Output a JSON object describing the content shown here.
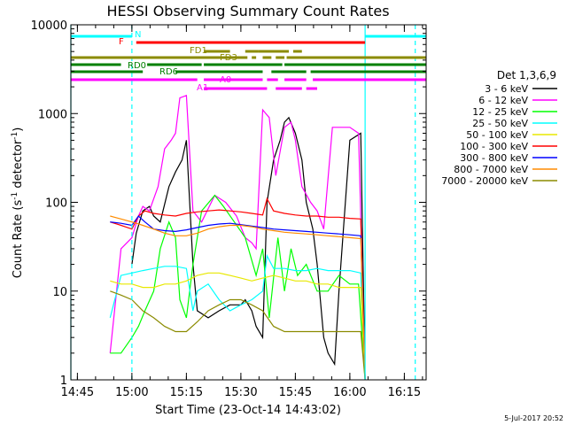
{
  "chart_data": {
    "type": "line",
    "title": "HESSI Observing Summary Count Rates",
    "xlabel": "Start Time (23-Oct-14 14:43:02)",
    "ylabel_main": "Count Rate (s",
    "ylabel_sup1": "-1",
    "ylabel_mid": " detector",
    "ylabel_sup2": "-1",
    "ylabel_end": ")",
    "yscale": "log",
    "ylim": [
      1,
      10000
    ],
    "xlim_minutes": [
      14.72,
      16.35
    ],
    "yticks": [
      "1",
      "10",
      "100",
      "1000",
      "10000"
    ],
    "xticks": [
      "14:45",
      "15:00",
      "15:15",
      "15:30",
      "15:45",
      "16:00",
      "16:15"
    ],
    "footer": "5-Jul-2017 20:52",
    "legend": {
      "title": "Det 1,3,6,9",
      "position": "right",
      "entries": [
        {
          "label": "3 - 6 keV",
          "color": "#000000"
        },
        {
          "label": "6 - 12 keV",
          "color": "#ff00ff"
        },
        {
          "label": "12 - 25 keV",
          "color": "#00ff00"
        },
        {
          "label": "25 - 50 keV",
          "color": "#00ffff"
        },
        {
          "label": "50 - 100 keV",
          "color": "#e8e800"
        },
        {
          "label": "100 - 300 keV",
          "color": "#ff0000"
        },
        {
          "label": "300 - 800 keV",
          "color": "#0000ff"
        },
        {
          "label": "800 - 7000 keV",
          "color": "#ff8c00"
        },
        {
          "label": "7000 - 20000 keV",
          "color": "#8b8b00"
        }
      ]
    },
    "flag_labels": [
      {
        "text": "N",
        "color": "#00ffff"
      },
      {
        "text": "F",
        "color": "#ff0000"
      },
      {
        "text": "FD1",
        "color": "#8b8b00"
      },
      {
        "text": "FD3",
        "color": "#8b8b00"
      },
      {
        "text": "RD0",
        "color": "#008000"
      },
      {
        "text": "RD6",
        "color": "#008000"
      },
      {
        "text": "A0",
        "color": "#ff00ff"
      },
      {
        "text": "A1",
        "color": "#ff00ff"
      }
    ],
    "flag_bars": [
      {
        "name": "N",
        "color": "#00ffff",
        "segments": [
          [
            14.72,
            15.0
          ],
          [
            16.07,
            16.35
          ]
        ]
      },
      {
        "name": "F",
        "color": "#ff0000",
        "segments": [
          [
            15.02,
            16.07
          ]
        ]
      },
      {
        "name": "FD1",
        "color": "#8b8b00",
        "segments": [
          [
            15.33,
            15.45
          ],
          [
            15.52,
            15.58
          ],
          [
            15.58,
            15.72
          ],
          [
            15.74,
            15.78
          ]
        ]
      },
      {
        "name": "FD3",
        "color": "#8b8b00",
        "segments": [
          [
            14.72,
            15.53
          ],
          [
            15.55,
            15.57
          ],
          [
            15.6,
            15.64
          ],
          [
            15.66,
            15.7
          ],
          [
            15.71,
            16.35
          ]
        ]
      },
      {
        "name": "RD0",
        "color": "#008000",
        "segments": [
          [
            14.72,
            14.95
          ],
          [
            15.07,
            15.32
          ],
          [
            15.33,
            15.69
          ],
          [
            15.7,
            16.35
          ]
        ]
      },
      {
        "name": "RD6",
        "color": "#008000",
        "segments": [
          [
            14.72,
            15.05
          ],
          [
            15.2,
            15.6
          ],
          [
            15.64,
            15.8
          ],
          [
            15.82,
            16.35
          ]
        ]
      },
      {
        "name": "A0",
        "color": "#ff00ff",
        "segments": [
          [
            14.72,
            15.3
          ],
          [
            15.33,
            15.6
          ],
          [
            15.62,
            15.67
          ],
          [
            15.7,
            15.8
          ],
          [
            15.83,
            16.35
          ]
        ]
      },
      {
        "name": "A1",
        "color": "#ff00ff",
        "segments": [
          [
            15.33,
            15.62
          ],
          [
            15.66,
            15.78
          ],
          [
            15.8,
            15.85
          ]
        ]
      }
    ],
    "vlines": [
      {
        "x": 14.72,
        "color": "#00ffff",
        "style": "solid"
      },
      {
        "x": 15.0,
        "color": "#00ffff",
        "style": "dashed"
      },
      {
        "x": 16.07,
        "color": "#00ffff",
        "style": "solid"
      },
      {
        "x": 16.3,
        "color": "#00ffff",
        "style": "dashed"
      }
    ],
    "series": [
      {
        "name": "3 - 6 keV",
        "color": "#000000",
        "x": [
          15.0,
          15.02,
          15.05,
          15.08,
          15.1,
          15.13,
          15.17,
          15.2,
          15.23,
          15.25,
          15.28,
          15.3,
          15.35,
          15.4,
          15.45,
          15.5,
          15.52,
          15.55,
          15.57,
          15.6,
          15.62,
          15.65,
          15.68,
          15.7,
          15.72,
          15.75,
          15.78,
          15.8,
          15.83,
          15.85,
          15.88,
          15.9,
          15.93,
          15.95,
          16.0,
          16.05,
          16.07
        ],
        "y": [
          20,
          45,
          80,
          90,
          70,
          60,
          150,
          220,
          300,
          500,
          20,
          6,
          5,
          6,
          7,
          7,
          8,
          6,
          4,
          3,
          100,
          300,
          500,
          800,
          900,
          600,
          300,
          100,
          50,
          20,
          3,
          2,
          1.5,
          10,
          500,
          600,
          1
        ]
      },
      {
        "name": "6 - 12 keV",
        "color": "#ff00ff",
        "x": [
          14.9,
          14.95,
          15.0,
          15.03,
          15.05,
          15.08,
          15.12,
          15.15,
          15.18,
          15.2,
          15.22,
          15.25,
          15.28,
          15.32,
          15.38,
          15.43,
          15.48,
          15.52,
          15.55,
          15.57,
          15.6,
          15.63,
          15.66,
          15.7,
          15.73,
          15.75,
          15.78,
          15.82,
          15.85,
          15.88,
          15.92,
          16.0,
          16.04,
          16.07
        ],
        "y": [
          2,
          30,
          40,
          70,
          90,
          80,
          150,
          400,
          500,
          600,
          1500,
          1600,
          80,
          60,
          120,
          100,
          70,
          40,
          35,
          30,
          1100,
          900,
          200,
          700,
          800,
          500,
          150,
          100,
          80,
          50,
          700,
          700,
          600,
          1
        ]
      },
      {
        "name": "12 - 25 keV",
        "color": "#00ff00",
        "x": [
          14.9,
          14.95,
          15.0,
          15.03,
          15.06,
          15.1,
          15.13,
          15.17,
          15.2,
          15.22,
          15.25,
          15.28,
          15.32,
          15.38,
          15.42,
          15.47,
          15.52,
          15.57,
          15.6,
          15.63,
          15.67,
          15.7,
          15.73,
          15.76,
          15.8,
          15.85,
          15.9,
          15.95,
          16.0,
          16.04,
          16.07
        ],
        "y": [
          2,
          2,
          3,
          4,
          6,
          10,
          30,
          60,
          40,
          8,
          5,
          20,
          80,
          120,
          90,
          60,
          40,
          15,
          30,
          5,
          40,
          10,
          30,
          15,
          20,
          10,
          10,
          15,
          12,
          12,
          1
        ]
      },
      {
        "name": "25 - 50 keV",
        "color": "#00ffff",
        "x": [
          14.9,
          14.95,
          15.0,
          15.05,
          15.1,
          15.15,
          15.2,
          15.25,
          15.28,
          15.3,
          15.35,
          15.4,
          15.45,
          15.5,
          15.55,
          15.6,
          15.62,
          15.65,
          15.7,
          15.75,
          15.8,
          15.85,
          15.9,
          16.0,
          16.05,
          16.07
        ],
        "y": [
          5,
          15,
          16,
          17,
          18,
          19,
          19,
          18,
          6,
          10,
          12,
          8,
          6,
          7,
          8,
          10,
          25,
          18,
          18,
          17,
          17,
          18,
          17,
          17,
          16,
          1
        ]
      },
      {
        "name": "50 - 100 keV",
        "color": "#e8e800",
        "x": [
          14.9,
          14.95,
          15.0,
          15.05,
          15.1,
          15.15,
          15.2,
          15.25,
          15.3,
          15.35,
          15.4,
          15.45,
          15.5,
          15.55,
          15.6,
          15.65,
          15.7,
          15.75,
          15.8,
          15.85,
          15.9,
          15.95,
          16.0,
          16.05,
          16.07
        ],
        "y": [
          13,
          12,
          12,
          11,
          11,
          12,
          12,
          13,
          15,
          16,
          16,
          15,
          14,
          13,
          14,
          15,
          14,
          13,
          13,
          12,
          12,
          11,
          11,
          11,
          1
        ]
      },
      {
        "name": "100 - 300 keV",
        "color": "#ff0000",
        "x": [
          14.9,
          14.95,
          15.0,
          15.03,
          15.06,
          15.1,
          15.15,
          15.2,
          15.25,
          15.3,
          15.35,
          15.4,
          15.45,
          15.5,
          15.55,
          15.6,
          15.62,
          15.65,
          15.7,
          15.75,
          15.8,
          15.85,
          15.9,
          15.95,
          16.0,
          16.05,
          16.07
        ],
        "y": [
          60,
          55,
          50,
          70,
          80,
          75,
          72,
          70,
          75,
          78,
          80,
          82,
          80,
          78,
          75,
          72,
          110,
          80,
          75,
          72,
          70,
          70,
          68,
          68,
          66,
          65,
          1
        ]
      },
      {
        "name": "300 - 800 keV",
        "color": "#0000ff",
        "x": [
          14.9,
          14.95,
          15.0,
          15.03,
          15.06,
          15.1,
          15.15,
          15.2,
          15.25,
          15.3,
          15.35,
          15.4,
          15.45,
          15.5,
          15.55,
          15.6,
          15.65,
          15.7,
          15.75,
          15.8,
          15.85,
          15.9,
          15.95,
          16.0,
          16.05,
          16.07
        ],
        "y": [
          60,
          58,
          55,
          70,
          60,
          50,
          48,
          47,
          49,
          52,
          55,
          57,
          58,
          56,
          54,
          52,
          50,
          49,
          48,
          47,
          46,
          45,
          44,
          43,
          42,
          1
        ]
      },
      {
        "name": "800 - 7000 keV",
        "color": "#ff8c00",
        "x": [
          14.9,
          14.95,
          15.0,
          15.05,
          15.1,
          15.15,
          15.2,
          15.25,
          15.3,
          15.35,
          15.4,
          15.45,
          15.5,
          15.55,
          15.6,
          15.65,
          15.7,
          15.75,
          15.8,
          15.85,
          15.9,
          15.95,
          16.0,
          16.05,
          16.07
        ],
        "y": [
          70,
          65,
          60,
          55,
          50,
          45,
          42,
          42,
          45,
          50,
          53,
          55,
          55,
          53,
          50,
          48,
          46,
          45,
          44,
          43,
          42,
          41,
          40,
          39,
          1
        ]
      },
      {
        "name": "7000 - 20000 keV",
        "color": "#8b8b00",
        "x": [
          14.9,
          14.95,
          15.0,
          15.05,
          15.1,
          15.15,
          15.2,
          15.25,
          15.3,
          15.35,
          15.4,
          15.45,
          15.5,
          15.55,
          15.6,
          15.65,
          15.7,
          15.75,
          15.8,
          15.85,
          15.9,
          15.95,
          16.0,
          16.05,
          16.07
        ],
        "y": [
          10,
          9,
          8,
          6,
          5,
          4,
          3.5,
          3.5,
          4.5,
          6,
          7,
          8,
          8,
          7,
          6,
          4,
          3.5,
          3.5,
          3.5,
          3.5,
          3.5,
          3.5,
          3.5,
          3.5,
          1
        ]
      }
    ]
  }
}
